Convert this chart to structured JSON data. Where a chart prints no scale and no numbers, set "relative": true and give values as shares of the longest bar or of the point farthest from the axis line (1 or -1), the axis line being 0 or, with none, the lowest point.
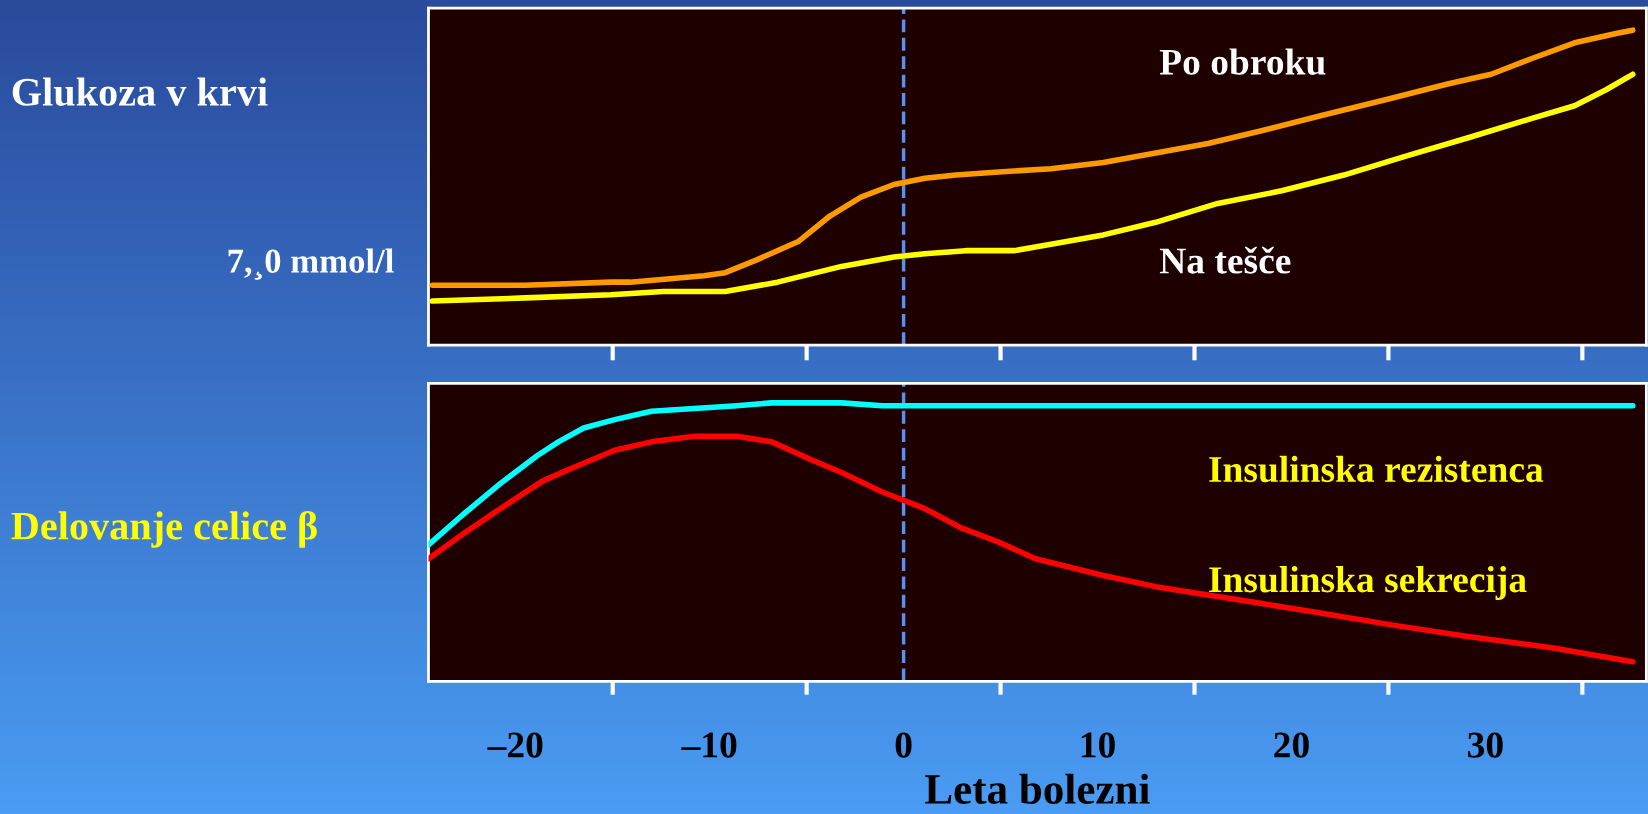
{
  "chart_data": [
    {
      "type": "line",
      "relative": true,
      "ylabel": "Glukoza v krvi",
      "annotations": [
        "7,¸0 mmol/l"
      ],
      "xlim": [
        -24.5,
        38.3
      ],
      "tick_labels": false,
      "grid": false,
      "legend": false,
      "marker": "none",
      "line_style": "solid",
      "xticks": [
        {
          "value": -15,
          "label": null
        },
        {
          "value": -5,
          "label": null
        },
        {
          "value": 5,
          "label": null
        },
        {
          "value": 15,
          "label": null
        },
        {
          "value": 25,
          "label": null
        },
        {
          "value": 35,
          "label": null
        }
      ],
      "ref_lines": [
        {
          "axis": "x",
          "value": 0,
          "label": null,
          "color": "#5b8ff0",
          "line_style": "dashed"
        }
      ],
      "series": [
        {
          "name": "Po obroku",
          "color": "#ff9900",
          "x": [
            -24.3,
            -19.5,
            -15.1,
            -14.1,
            -10.3,
            -9.2,
            -7.6,
            -5.4,
            -3.8,
            -2.2,
            -0.5,
            1.1,
            2.7,
            4.9,
            7.6,
            10.3,
            13.0,
            15.7,
            18.4,
            21.6,
            24.9,
            28.1,
            30.3,
            32.4,
            34.6,
            36.8,
            37.6
          ],
          "values": [
            0.19,
            0.19,
            0.2,
            0.2,
            0.22,
            0.23,
            0.27,
            0.33,
            0.41,
            0.47,
            0.51,
            0.53,
            0.54,
            0.55,
            0.56,
            0.58,
            0.61,
            0.64,
            0.68,
            0.73,
            0.78,
            0.83,
            0.86,
            0.91,
            0.96,
            0.99,
            1
          ]
        },
        {
          "name": "Na tešče",
          "color": "#ffff00",
          "x": [
            -24.3,
            -19.5,
            -15.1,
            -12.4,
            -10.8,
            -9.2,
            -6.5,
            -3.2,
            -0.5,
            1.1,
            3.2,
            5.7,
            7.6,
            10.3,
            13.0,
            14.6,
            16.2,
            19.5,
            22.7,
            25.9,
            29.2,
            32.4,
            34.6,
            36.2,
            37.6
          ],
          "values": [
            0.14,
            0.15,
            0.16,
            0.17,
            0.17,
            0.17,
            0.2,
            0.25,
            0.28,
            0.29,
            0.3,
            0.3,
            0.32,
            0.35,
            0.39,
            0.42,
            0.45,
            0.49,
            0.54,
            0.6,
            0.66,
            0.72,
            0.76,
            0.81,
            0.86
          ]
        }
      ]
    },
    {
      "type": "line",
      "relative": true,
      "ylabel": "Delovanje celice β",
      "xlabel": "Leta bolezni",
      "xlim": [
        -24.5,
        38.3
      ],
      "tick_labels": "x",
      "grid": false,
      "legend": false,
      "marker": "none",
      "line_style": "solid",
      "xticks": [
        {
          "value": -20,
          "label": "–20"
        },
        {
          "value": -10,
          "label": "–10"
        },
        0,
        10,
        20,
        30,
        {
          "value": -15,
          "label": null
        },
        {
          "value": -5,
          "label": null
        },
        {
          "value": 5,
          "label": null
        },
        {
          "value": 15,
          "label": null
        },
        {
          "value": 25,
          "label": null
        },
        {
          "value": 35,
          "label": null
        }
      ],
      "ref_lines": [
        {
          "axis": "x",
          "value": 0,
          "label": null,
          "color": "#5b8ff0",
          "line_style": "dashed"
        }
      ],
      "series": [
        {
          "name": "Insulinska rezistenca",
          "color": "#00ffff",
          "x": [
            -24.5,
            -22.7,
            -20.8,
            -18.9,
            -17.8,
            -16.5,
            -14.9,
            -13.0,
            -10.8,
            -8.6,
            -6.8,
            -4.9,
            -3.2,
            -1.1,
            7.6,
            37.6
          ],
          "values": [
            0.49,
            0.6,
            0.71,
            0.81,
            0.86,
            0.91,
            0.94,
            0.97,
            0.98,
            0.99,
            1,
            1,
            1,
            0.99,
            0.99,
            0.99
          ]
        },
        {
          "name": "Insulinska sekrecija",
          "color": "#ff0000",
          "x": [
            -24.5,
            -22.7,
            -20.8,
            -18.6,
            -17.3,
            -14.9,
            -13.0,
            -10.8,
            -8.6,
            -6.8,
            -4.9,
            -3.2,
            -1.1,
            1.1,
            3.0,
            4.9,
            6.8,
            10.3,
            13.0,
            15.7,
            18.4,
            21.1,
            25.4,
            29.2,
            33.5,
            37.6
          ],
          "values": [
            0.44,
            0.53,
            0.62,
            0.72,
            0.76,
            0.83,
            0.86,
            0.88,
            0.88,
            0.86,
            0.8,
            0.75,
            0.68,
            0.62,
            0.55,
            0.5,
            0.44,
            0.38,
            0.34,
            0.31,
            0.28,
            0.25,
            0.2,
            0.16,
            0.12,
            0.07
          ]
        }
      ]
    }
  ]
}
